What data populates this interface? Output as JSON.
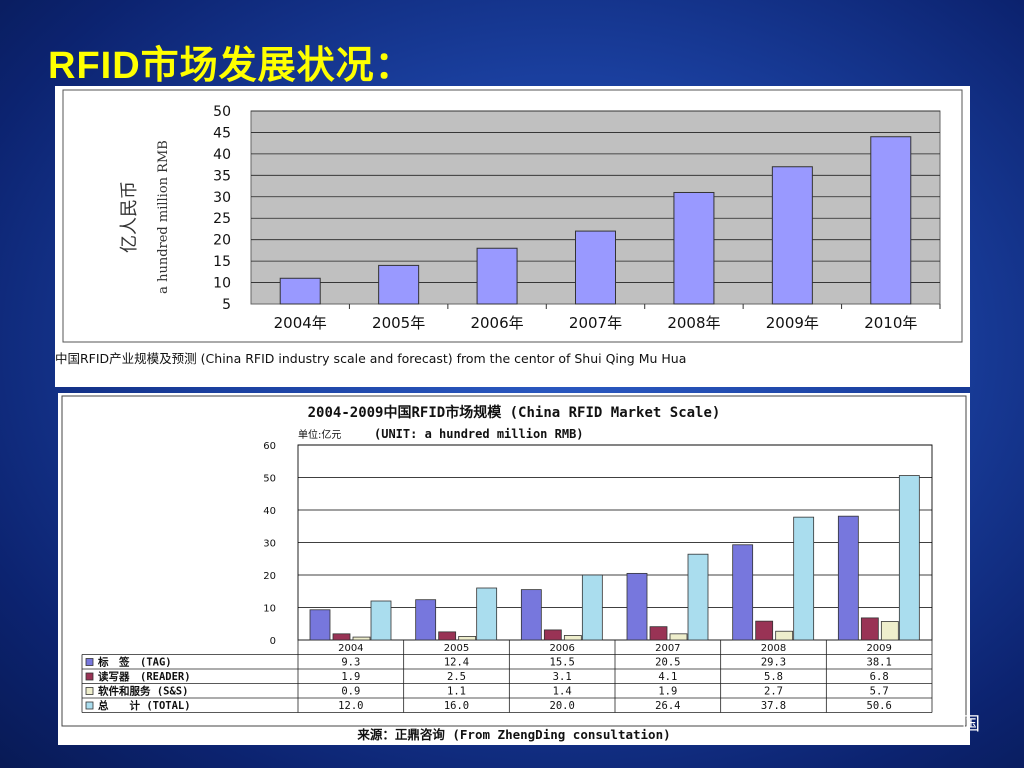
{
  "slide": {
    "title": "RFID市场发展状况：",
    "corner_mark": "国"
  },
  "chart_data": [
    {
      "type": "bar",
      "title": "",
      "ylabel_cn": "亿人民币",
      "ylabel_en": "a hundred million RMB",
      "caption": "中国RFID产业规模及预测 (China RFID industry scale and forecast) from the centor of Shui Qing Mu Hua",
      "categories": [
        "2004年",
        "2005年",
        "2006年",
        "2007年",
        "2008年",
        "2009年",
        "2010年"
      ],
      "values": [
        11,
        14,
        18,
        22,
        31,
        37,
        44
      ],
      "ylim": [
        5,
        50
      ],
      "yticks": [
        5,
        10,
        15,
        20,
        25,
        30,
        35,
        40,
        45,
        50
      ],
      "grid": true,
      "colors": {
        "bar": "#9999ff",
        "plot_bg": "#c0c0c0"
      }
    },
    {
      "type": "bar",
      "title": "2004-2009中国RFID市场规模 (China RFID Market Scale)",
      "unit_label": "单位:亿元",
      "unit_label_en": "(UNIT: a hundred million RMB)",
      "source": "来源：正鼎咨询 (From ZhengDing consultation)",
      "categories": [
        "2004",
        "2005",
        "2006",
        "2007",
        "2008",
        "2009"
      ],
      "ylim": [
        0,
        60
      ],
      "yticks": [
        0,
        10,
        20,
        30,
        40,
        50,
        60
      ],
      "grid": true,
      "series": [
        {
          "name": "标　签　(TAG)",
          "values": [
            9.3,
            12.4,
            15.5,
            20.5,
            29.3,
            38.1
          ],
          "value_labels": [
            "9.3",
            "12.4",
            "15.5",
            "20.5",
            "29.3",
            "38.1"
          ],
          "color": "#7777dd",
          "symbol": "■"
        },
        {
          "name": "读写器　(READER)",
          "values": [
            1.9,
            2.5,
            3.1,
            4.1,
            5.8,
            6.8
          ],
          "value_labels": [
            "1.9",
            "2.5",
            "3.1",
            "4.1",
            "5.8",
            "6.8"
          ],
          "color": "#993355",
          "symbol": "■"
        },
        {
          "name": "软件和服务 (S&S)",
          "values": [
            0.9,
            1.1,
            1.4,
            1.9,
            2.7,
            5.7
          ],
          "value_labels": [
            "0.9",
            "1.1",
            "1.4",
            "1.9",
            "2.7",
            "5.7"
          ],
          "color": "#eeeecc",
          "symbol": "□"
        },
        {
          "name": "总　　计 (TOTAL)",
          "values": [
            12.0,
            16.0,
            20.0,
            26.4,
            37.8,
            50.6
          ],
          "value_labels": [
            "12.0",
            "16.0",
            "20.0",
            "26.4",
            "37.8",
            "50.6"
          ],
          "color": "#aaddee",
          "symbol": "□"
        }
      ]
    }
  ]
}
